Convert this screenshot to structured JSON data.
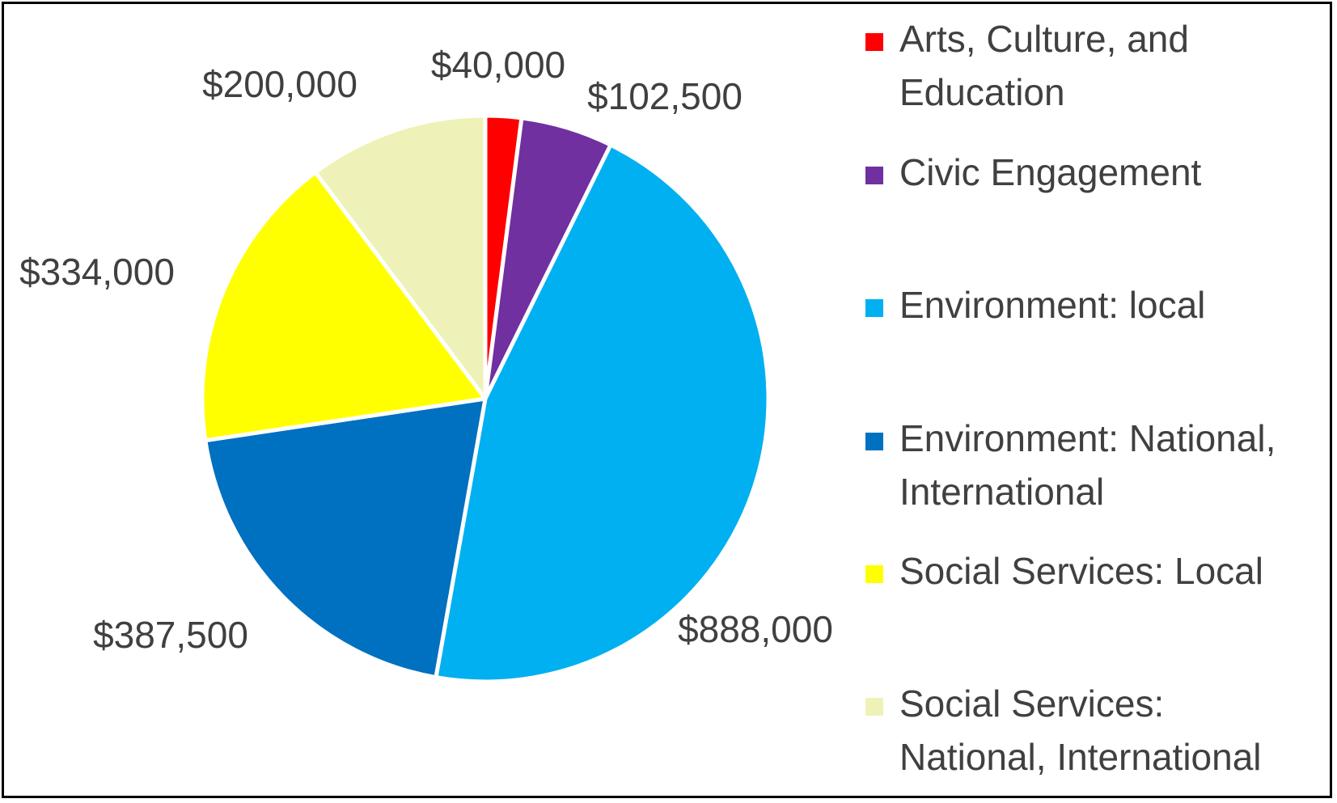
{
  "chart_data": {
    "type": "pie",
    "title": "",
    "legend_position": "right",
    "slices": [
      {
        "label": "Arts, Culture, and Education",
        "legend_lines": [
          "Arts, Culture, and",
          "Education"
        ],
        "value": 40000,
        "value_label": "$40,000",
        "color": "#FF0000"
      },
      {
        "label": "Civic Engagement",
        "legend_lines": [
          "Civic Engagement"
        ],
        "value": 102500,
        "value_label": "$102,500",
        "color": "#7030A0"
      },
      {
        "label": "Environment: local",
        "legend_lines": [
          "Environment: local"
        ],
        "value": 888000,
        "value_label": "$888,000",
        "color": "#00B0F0"
      },
      {
        "label": "Environment: National, International",
        "legend_lines": [
          "Environment: National,",
          "International"
        ],
        "value": 387500,
        "value_label": "$387,500",
        "color": "#0070C0"
      },
      {
        "label": "Social Services: Local",
        "legend_lines": [
          "Social Services: Local"
        ],
        "value": 334000,
        "value_label": "$334,000",
        "color": "#FFFF00"
      },
      {
        "label": "Social Services: National, International",
        "legend_lines": [
          "Social Services:",
          "National, International"
        ],
        "value": 200000,
        "value_label": "$200,000",
        "color": "#EEF2B8"
      }
    ]
  }
}
